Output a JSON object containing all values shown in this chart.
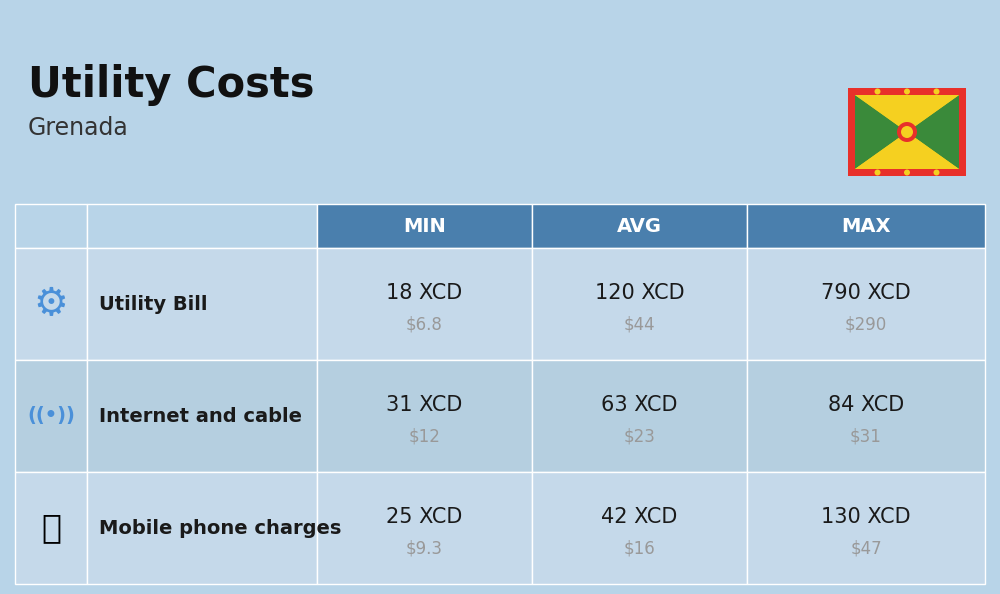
{
  "title": "Utility Costs",
  "subtitle": "Grenada",
  "bg_color": "#b8d4e8",
  "header_bg_color": "#4a7fad",
  "header_text_color": "#ffffff",
  "row_bg_color_1": "#c5d9ea",
  "row_bg_color_2": "#b5cfe0",
  "cell_text_color": "#1a1a1a",
  "sub_text_color": "#999999",
  "headers": [
    "",
    "",
    "MIN",
    "AVG",
    "MAX"
  ],
  "rows": [
    {
      "icon_label": "utility",
      "label": "Utility Bill",
      "min_xcd": "18 XCD",
      "min_usd": "$6.8",
      "avg_xcd": "120 XCD",
      "avg_usd": "$44",
      "max_xcd": "790 XCD",
      "max_usd": "$290"
    },
    {
      "icon_label": "internet",
      "label": "Internet and cable",
      "min_xcd": "31 XCD",
      "min_usd": "$12",
      "avg_xcd": "63 XCD",
      "avg_usd": "$23",
      "max_xcd": "84 XCD",
      "max_usd": "$31"
    },
    {
      "icon_label": "mobile",
      "label": "Mobile phone charges",
      "min_xcd": "25 XCD",
      "min_usd": "$9.3",
      "avg_xcd": "42 XCD",
      "avg_usd": "$16",
      "max_xcd": "130 XCD",
      "max_usd": "$47"
    }
  ],
  "title_fontsize": 30,
  "subtitle_fontsize": 17,
  "header_fontsize": 14,
  "cell_fontsize": 15,
  "sub_fontsize": 12,
  "label_fontsize": 14
}
